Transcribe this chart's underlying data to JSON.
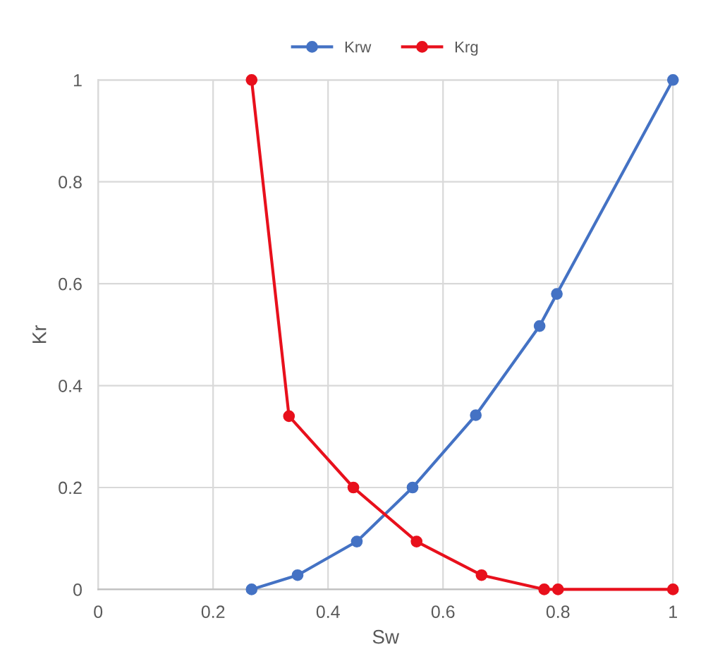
{
  "chart_data": {
    "type": "line",
    "xlabel": "Sw",
    "ylabel": "Kr",
    "xlim": [
      0,
      1
    ],
    "ylim": [
      0,
      1
    ],
    "xticks": [
      0,
      0.2,
      0.4,
      0.6,
      0.8,
      1
    ],
    "yticks": [
      0,
      0.2,
      0.4,
      0.6,
      0.8,
      1
    ],
    "grid": true,
    "legend": "top",
    "marker": "circle",
    "line_style": "solid",
    "series": [
      {
        "name": "Krw",
        "color": "#4472c4",
        "x": [
          0.267,
          0.347,
          0.45,
          0.547,
          0.657,
          0.768,
          0.798,
          1
        ],
        "values": [
          0,
          0.028,
          0.094,
          0.2,
          0.342,
          0.517,
          0.58,
          1
        ]
      },
      {
        "name": "Krg",
        "color": "#e8101c",
        "x": [
          0.267,
          0.332,
          0.444,
          0.554,
          0.667,
          0.776,
          0.8,
          1
        ],
        "values": [
          1,
          0.34,
          0.2,
          0.094,
          0.028,
          0,
          0,
          0
        ]
      }
    ]
  }
}
